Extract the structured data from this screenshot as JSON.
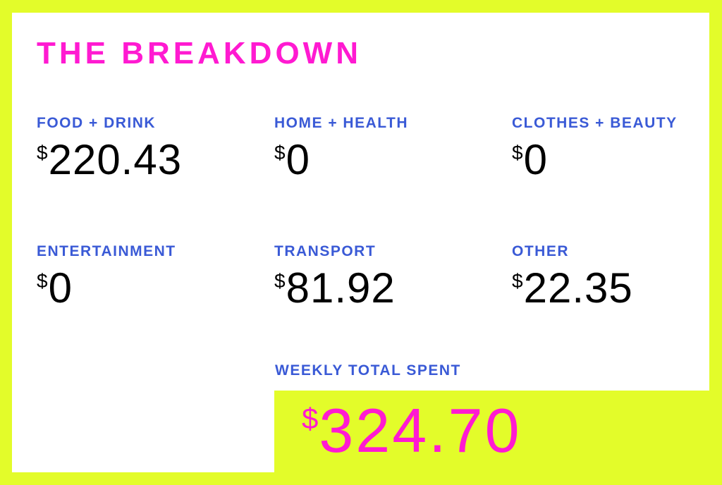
{
  "title": "THE BREAKDOWN",
  "currency_symbol": "$",
  "categories": [
    {
      "label": "FOOD + DRINK",
      "amount": "220.43"
    },
    {
      "label": "HOME + HEALTH",
      "amount": "0"
    },
    {
      "label": "CLOTHES + BEAUTY",
      "amount": "0"
    },
    {
      "label": "ENTERTAINMENT",
      "amount": "0"
    },
    {
      "label": "TRANSPORT",
      "amount": "81.92"
    },
    {
      "label": "OTHER",
      "amount": "22.35"
    }
  ],
  "total": {
    "label": "WEEKLY TOTAL SPENT",
    "amount": "324.70"
  },
  "colors": {
    "background": "#e3fc2a",
    "card": "#ffffff",
    "accent": "#ff1ad1",
    "label": "#3a5ad6",
    "value": "#000000"
  }
}
